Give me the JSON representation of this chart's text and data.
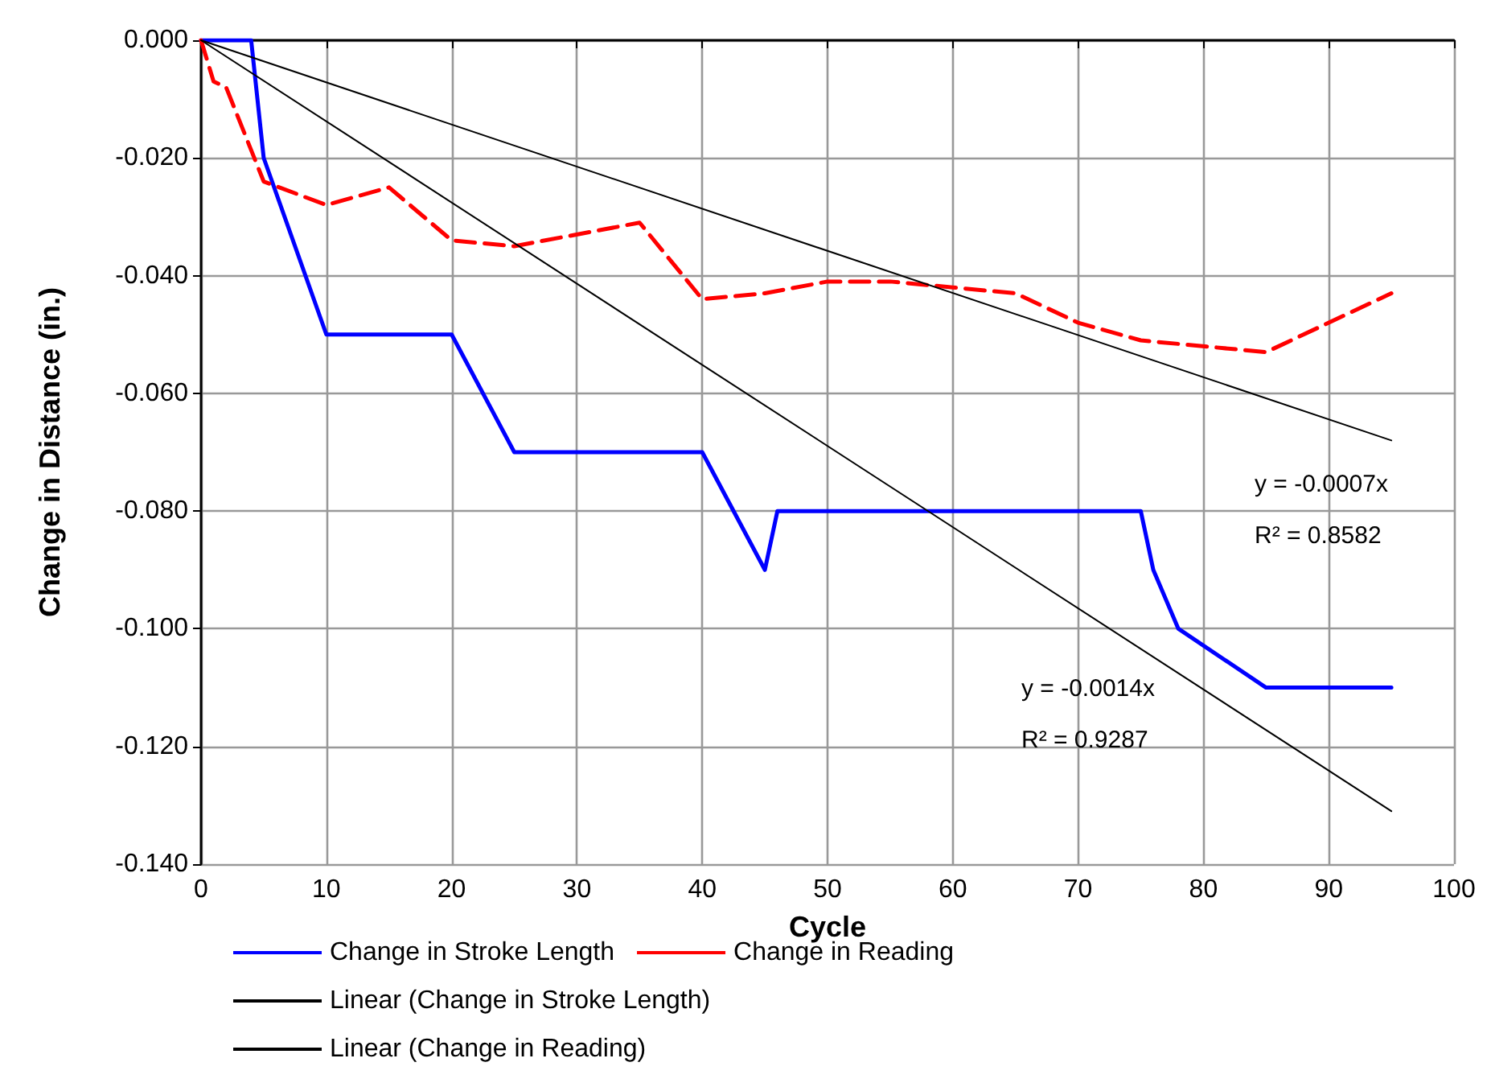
{
  "chart_data": {
    "type": "line",
    "xlabel": "Cycle",
    "ylabel": "Change in Distance (in.)",
    "xlim": [
      0,
      100
    ],
    "xticks": [
      0,
      10,
      20,
      30,
      40,
      50,
      60,
      70,
      80,
      90,
      100
    ],
    "ylim": [
      -0.14,
      0
    ],
    "yticks": [
      {
        "value": -0.14,
        "label": "-0.140"
      },
      {
        "value": -0.12,
        "label": "-0.120"
      },
      {
        "value": -0.1,
        "label": "-0.100"
      },
      {
        "value": -0.08,
        "label": "-0.080"
      },
      {
        "value": -0.06,
        "label": "-0.060"
      },
      {
        "value": -0.04,
        "label": "-0.040"
      },
      {
        "value": -0.02,
        "label": "-0.020"
      },
      {
        "value": 0,
        "label": "0.000"
      }
    ],
    "grid": true,
    "legend": "bottom",
    "marker": "none",
    "series": [
      {
        "name": "Change in Stroke Length",
        "color": "#0000ff",
        "line_style": "solid",
        "x": [
          0,
          4,
          5,
          10,
          20,
          25,
          40,
          45,
          46,
          75,
          76,
          78,
          85,
          95
        ],
        "values": [
          0,
          0,
          -0.02,
          -0.05,
          -0.05,
          -0.07,
          -0.07,
          -0.09,
          -0.08,
          -0.08,
          -0.09,
          -0.1,
          -0.11,
          -0.11
        ]
      },
      {
        "name": "Change in Reading",
        "color": "#ff0000",
        "line_style": "dashed",
        "x": [
          0,
          1,
          2,
          5,
          10,
          15,
          20,
          25,
          35,
          40,
          45,
          50,
          55,
          60,
          65,
          70,
          75,
          85,
          95
        ],
        "values": [
          0,
          -0.007,
          -0.008,
          -0.024,
          -0.028,
          -0.025,
          -0.034,
          -0.035,
          -0.031,
          -0.044,
          -0.043,
          -0.041,
          -0.041,
          -0.042,
          -0.043,
          -0.048,
          -0.051,
          -0.053,
          -0.043
        ]
      },
      {
        "name": "Linear (Change in Stroke Length)",
        "color": "#000000",
        "line_style": "solid",
        "x": [
          0,
          95
        ],
        "values": [
          0,
          -0.131
        ]
      },
      {
        "name": "Linear (Change in Reading)",
        "color": "#000000",
        "line_style": "solid",
        "x": [
          0,
          95
        ],
        "values": [
          0,
          -0.068
        ]
      }
    ],
    "annotations": [
      "y = -0.0007x",
      "R² = 0.8582",
      "y = -0.0014x",
      "R² = 0.9287"
    ]
  }
}
